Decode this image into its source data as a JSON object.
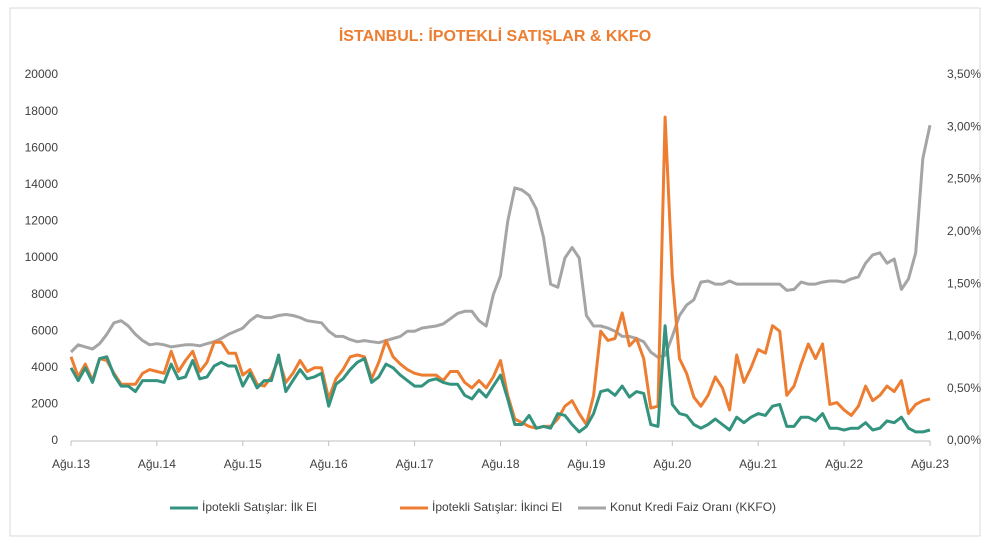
{
  "chart_data": {
    "type": "line",
    "title": "İSTANBUL: İPOTEKLİ SATIŞLAR & KKFO",
    "categories": [
      "Ağu.13",
      null,
      null,
      null,
      null,
      null,
      null,
      null,
      null,
      null,
      null,
      null,
      "Ağu.14",
      null,
      null,
      null,
      null,
      null,
      null,
      null,
      null,
      null,
      null,
      null,
      "Ağu.15",
      null,
      null,
      null,
      null,
      null,
      null,
      null,
      null,
      null,
      null,
      null,
      "Ağu.16",
      null,
      null,
      null,
      null,
      null,
      null,
      null,
      null,
      null,
      null,
      null,
      "Ağu.17",
      null,
      null,
      null,
      null,
      null,
      null,
      null,
      null,
      null,
      null,
      null,
      "Ağu.18",
      null,
      null,
      null,
      null,
      null,
      null,
      null,
      null,
      null,
      null,
      null,
      "Ağu.19",
      null,
      null,
      null,
      null,
      null,
      null,
      null,
      null,
      null,
      null,
      null,
      "Ağu.20",
      null,
      null,
      null,
      null,
      null,
      null,
      null,
      null,
      null,
      null,
      null,
      "Ağu.21",
      null,
      null,
      null,
      null,
      null,
      null,
      null,
      null,
      null,
      null,
      null,
      "Ağu.22",
      null,
      null,
      null,
      null,
      null,
      null,
      null,
      null,
      null,
      null,
      null,
      "Ağu.23"
    ],
    "series": [
      {
        "name": "İpotekli Satışlar: İlk El",
        "color": "#33937F",
        "values": [
          4000,
          3300,
          4000,
          3200,
          4500,
          4600,
          3600,
          3000,
          3000,
          2700,
          3300,
          3300,
          3300,
          3200,
          4200,
          3400,
          3500,
          4400,
          3400,
          3500,
          4100,
          4300,
          4100,
          4100,
          3000,
          3700,
          2900,
          3300,
          3300,
          4700,
          2700,
          3300,
          3900,
          3400,
          3500,
          3700,
          1900,
          3100,
          3400,
          3900,
          4300,
          4500,
          3200,
          3500,
          4200,
          4000,
          3600,
          3300,
          3000,
          3000,
          3300,
          3400,
          3200,
          3100,
          3100,
          2500,
          2300,
          2800,
          2400,
          3000,
          3600,
          2300,
          900,
          900,
          1400,
          700,
          800,
          700,
          1500,
          1400,
          900,
          500,
          800,
          1500,
          2700,
          2800,
          2500,
          3000,
          2400,
          2700,
          2600,
          900,
          800,
          6300,
          2000,
          1500,
          1400,
          900,
          700,
          900,
          1200,
          900,
          600,
          1300,
          1000,
          1300,
          1500,
          1400,
          1900,
          2000,
          800,
          800,
          1300,
          1300,
          1100,
          1500,
          700,
          700,
          600,
          700,
          700,
          1000,
          600,
          700,
          1100,
          1000,
          1300,
          700,
          500,
          500,
          600
        ]
      },
      {
        "name": "İpotekli Satışlar: İkinci El",
        "color": "#ED7D31",
        "values": [
          4600,
          3500,
          4200,
          3300,
          4500,
          4400,
          3700,
          3100,
          3100,
          3100,
          3700,
          3900,
          3800,
          3700,
          4900,
          3800,
          4400,
          4900,
          3800,
          4300,
          5400,
          5400,
          4800,
          4800,
          3600,
          3900,
          3100,
          3000,
          3500,
          4500,
          3200,
          3700,
          4400,
          3800,
          4000,
          4000,
          2300,
          3400,
          3900,
          4600,
          4700,
          4600,
          3400,
          4300,
          5500,
          4600,
          4200,
          3900,
          3700,
          3600,
          3600,
          3600,
          3300,
          3800,
          3800,
          3200,
          2900,
          3300,
          2900,
          3500,
          4400,
          2500,
          1200,
          1000,
          800,
          700,
          800,
          800,
          1200,
          1900,
          2200,
          1500,
          900,
          2500,
          6000,
          5500,
          5600,
          7000,
          5200,
          5600,
          4500,
          1800,
          1900,
          17700,
          9000,
          4500,
          3700,
          2400,
          1900,
          2500,
          3500,
          2900,
          1700,
          4700,
          3200,
          4000,
          5000,
          4800,
          6300,
          6000,
          2500,
          3000,
          4200,
          5300,
          4500,
          5300,
          2000,
          2100,
          1700,
          1400,
          1900,
          3000,
          2200,
          2500,
          3000,
          2700,
          3300,
          1500,
          2000,
          2200,
          2300
        ]
      },
      {
        "name": "Konut Kredi Faiz Oranı (KKFO)",
        "color": "#A5A5A5",
        "axis": "y2",
        "values": [
          0.85,
          0.92,
          0.9,
          0.88,
          0.93,
          1.02,
          1.13,
          1.15,
          1.1,
          1.02,
          0.96,
          0.92,
          0.93,
          0.92,
          0.9,
          0.91,
          0.92,
          0.92,
          0.91,
          0.93,
          0.95,
          0.98,
          1.02,
          1.05,
          1.08,
          1.15,
          1.2,
          1.18,
          1.18,
          1.2,
          1.21,
          1.2,
          1.18,
          1.15,
          1.14,
          1.13,
          1.05,
          1.0,
          1.0,
          0.97,
          0.95,
          0.96,
          0.95,
          0.94,
          0.96,
          0.98,
          1.0,
          1.05,
          1.05,
          1.08,
          1.09,
          1.1,
          1.12,
          1.17,
          1.22,
          1.24,
          1.24,
          1.15,
          1.1,
          1.4,
          1.58,
          2.1,
          2.42,
          2.4,
          2.35,
          2.22,
          1.95,
          1.5,
          1.47,
          1.75,
          1.85,
          1.75,
          1.2,
          1.1,
          1.1,
          1.08,
          1.05,
          1.0,
          1.0,
          0.98,
          0.95,
          0.85,
          0.8,
          0.82,
          1.0,
          1.2,
          1.3,
          1.35,
          1.52,
          1.53,
          1.5,
          1.5,
          1.53,
          1.5,
          1.5,
          1.5,
          1.5,
          1.5,
          1.5,
          1.5,
          1.44,
          1.45,
          1.52,
          1.5,
          1.5,
          1.52,
          1.53,
          1.53,
          1.52,
          1.55,
          1.57,
          1.7,
          1.78,
          1.8,
          1.7,
          1.74,
          1.45,
          1.55,
          1.8,
          2.7,
          3.02
        ]
      }
    ],
    "ylim": [
      0,
      20000
    ],
    "yticks": [
      0,
      2000,
      4000,
      6000,
      8000,
      10000,
      12000,
      14000,
      16000,
      18000,
      20000
    ],
    "y2lim": [
      0,
      3.5
    ],
    "y2ticks": [
      {
        "value": 0,
        "label": "0,00%"
      },
      {
        "value": 0.5,
        "label": "0,50%"
      },
      {
        "value": 1,
        "label": "1,00%"
      },
      {
        "value": 1.5,
        "label": "1,50%"
      },
      {
        "value": 2,
        "label": "2,00%"
      },
      {
        "value": 2.5,
        "label": "2,50%"
      },
      {
        "value": 3,
        "label": "3,00%"
      },
      {
        "value": 3.5,
        "label": "3,50%"
      }
    ],
    "grid": false,
    "legend": "bottom"
  }
}
